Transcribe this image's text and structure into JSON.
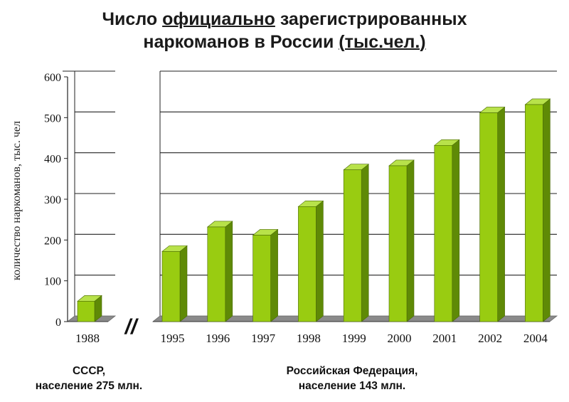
{
  "title": {
    "line1_part1": "Число ",
    "line1_underlined": "официально",
    "line1_part2": " зарегистрированных",
    "line2_part1": "наркоманов в России ",
    "line2_underlined": "(тыс.чел.)"
  },
  "chart_data": {
    "type": "bar",
    "title": "Число официально зарегистрированных наркоманов в России (тыс.чел.)",
    "ylabel": "количество наркоманов, тыс. чел",
    "xlabel": "",
    "ylim": [
      0,
      600
    ],
    "yticks": [
      0,
      100,
      200,
      300,
      400,
      500,
      600
    ],
    "grid": true,
    "axis_break_symbol": "//",
    "panels": [
      {
        "categories": [
          "1988"
        ],
        "values": [
          50
        ],
        "group_label_line1": "СССР,",
        "group_label_line2": "население 275 млн."
      },
      {
        "categories": [
          "1995",
          "1996",
          "1997",
          "1998",
          "1999",
          "2000",
          "2001",
          "2002",
          "2004"
        ],
        "values": [
          172,
          232,
          212,
          282,
          372,
          382,
          432,
          512,
          532
        ],
        "group_label_line1": "Российская Федерация,",
        "group_label_line2": "население 143 млн."
      }
    ]
  },
  "colors": {
    "bar_front": "#99cc11",
    "bar_side": "#5f8a06",
    "bar_top": "#b8e24a",
    "floor": "#8a8a8a",
    "grid": "#222222"
  }
}
